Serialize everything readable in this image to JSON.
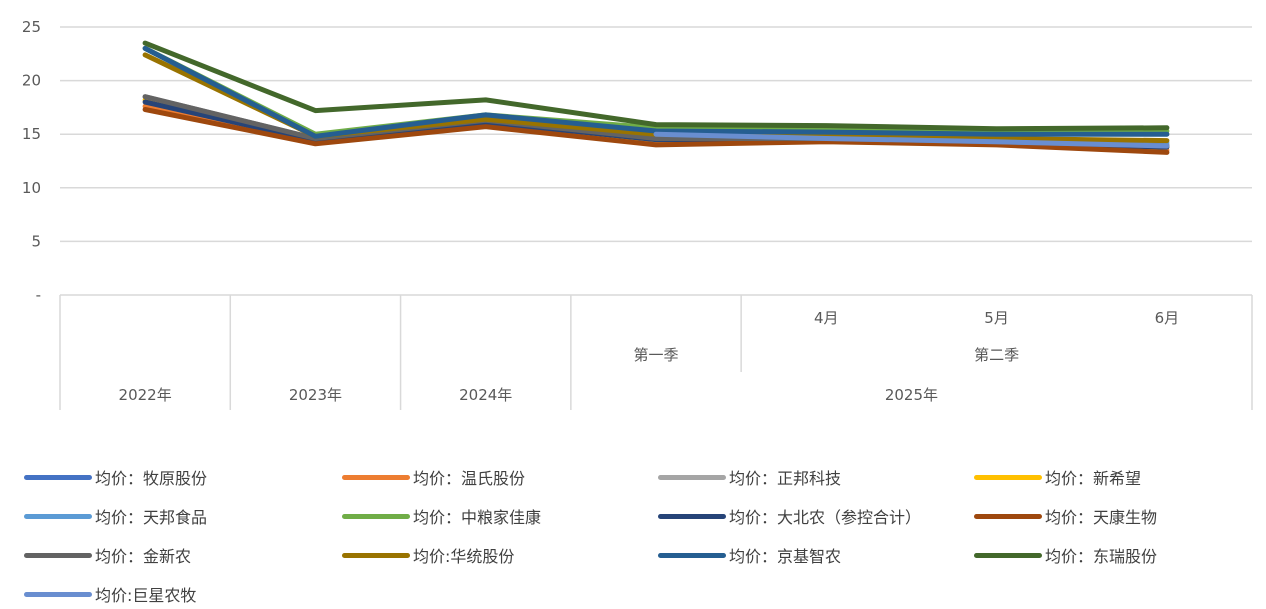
{
  "chart_data": {
    "type": "line",
    "ylim": [
      0,
      25
    ],
    "y_ticks": [
      "-",
      "5",
      "10",
      "15",
      "20",
      "25"
    ],
    "grid": true,
    "legend_position": "bottom",
    "categories": [
      {
        "label": "2022年"
      },
      {
        "label": "2023年"
      },
      {
        "label": "2024年"
      },
      {
        "label": "第一季",
        "group": "2025年"
      },
      {
        "label": "4月",
        "subgroup": "第二季",
        "group": "2025年"
      },
      {
        "label": "5月",
        "subgroup": "第二季",
        "group": "2025年"
      },
      {
        "label": "6月",
        "subgroup": "第二季",
        "group": "2025年"
      }
    ],
    "axis_labels": {
      "years": [
        "2022年",
        "2023年",
        "2024年",
        "2025年"
      ],
      "quarters": [
        "第一季",
        "第二季"
      ],
      "months": [
        "4月",
        "5月",
        "6月"
      ]
    },
    "series": [
      {
        "name": "均价：牧原股份",
        "color": "#4472C4",
        "values": [
          null,
          null,
          null,
          14.9,
          14.6,
          14.3,
          14.0
        ]
      },
      {
        "name": "均价：温氏股份",
        "color": "#ED7D31",
        "values": [
          17.6,
          14.3,
          15.8,
          14.3,
          14.4,
          14.1,
          13.5
        ]
      },
      {
        "name": "均价：正邦科技",
        "color": "#A5A5A5",
        "values": [
          18.5,
          14.6,
          16.2,
          14.7,
          14.6,
          14.3,
          14.0
        ]
      },
      {
        "name": "均价：新希望",
        "color": "#FFC000",
        "values": [
          18.2,
          14.5,
          16.0,
          14.5,
          14.5,
          14.2,
          13.8
        ]
      },
      {
        "name": "均价：天邦食品",
        "color": "#5B9BD5",
        "values": [
          null,
          null,
          null,
          15.0,
          14.7,
          14.4,
          14.2
        ]
      },
      {
        "name": "均价：中粮家佳康",
        "color": "#70AD47",
        "values": [
          23.0,
          15.0,
          16.8,
          15.6,
          15.4,
          15.2,
          15.3
        ]
      },
      {
        "name": "均价：大北农（参控合计）",
        "color": "#264478",
        "values": [
          18.0,
          14.4,
          16.1,
          14.5,
          14.5,
          14.2,
          13.8
        ]
      },
      {
        "name": "均价：天康生物",
        "color": "#9E480E",
        "values": [
          17.3,
          14.1,
          15.7,
          14.0,
          14.3,
          14.0,
          13.3
        ]
      },
      {
        "name": "均价：金新农",
        "color": "#636363",
        "values": [
          18.5,
          14.6,
          16.3,
          14.6,
          14.6,
          14.3,
          13.9
        ]
      },
      {
        "name": "均价:华统股份",
        "color": "#997300",
        "values": [
          22.4,
          14.8,
          16.4,
          15.0,
          14.8,
          14.6,
          14.4
        ]
      },
      {
        "name": "均价：京基智农",
        "color": "#255E91",
        "values": [
          23.0,
          14.8,
          16.8,
          15.3,
          15.2,
          15.0,
          15.0
        ]
      },
      {
        "name": "均价：东瑞股份",
        "color": "#43682B",
        "values": [
          23.5,
          17.2,
          18.2,
          15.9,
          15.8,
          15.5,
          15.6
        ]
      },
      {
        "name": "均价:巨星农牧",
        "color": "#698ED0",
        "values": [
          null,
          null,
          null,
          15.0,
          14.6,
          14.3,
          13.9
        ]
      }
    ]
  }
}
